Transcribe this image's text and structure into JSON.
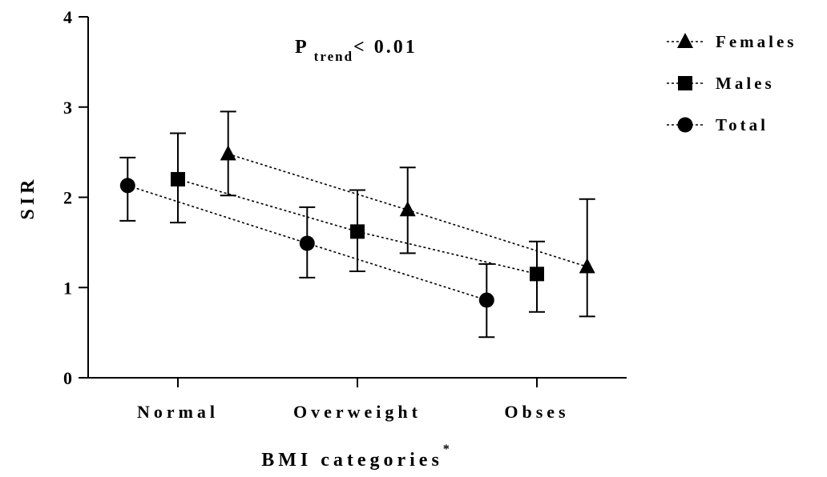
{
  "chart_data": {
    "type": "scatter",
    "title": "",
    "xlabel": "BMI categories",
    "xlabel_suffix": "*",
    "ylabel": "SIR",
    "categories": [
      "Normal",
      "Overweight",
      "Obses"
    ],
    "ylim": [
      0,
      4
    ],
    "yticks": [
      0,
      1,
      2,
      3,
      4
    ],
    "grid": false,
    "legend_position": "top-right",
    "annotation": {
      "main": "P",
      "sub": "trend",
      "rest": "< 0.01"
    },
    "series": [
      {
        "name": "Females",
        "marker": "triangle",
        "offset": 0.28,
        "values": [
          2.48,
          1.86,
          1.23
        ],
        "lower": [
          2.02,
          1.38,
          0.68
        ],
        "upper": [
          2.95,
          2.33,
          1.98
        ]
      },
      {
        "name": "Males",
        "marker": "square",
        "offset": 0,
        "values": [
          2.2,
          1.62,
          1.15
        ],
        "lower": [
          1.72,
          1.18,
          0.73
        ],
        "upper": [
          2.71,
          2.08,
          1.51
        ]
      },
      {
        "name": "Total",
        "marker": "circle",
        "offset": -0.28,
        "values": [
          2.13,
          1.49,
          0.86
        ],
        "lower": [
          1.74,
          1.11,
          0.45
        ],
        "upper": [
          2.44,
          1.89,
          1.26
        ]
      }
    ]
  }
}
